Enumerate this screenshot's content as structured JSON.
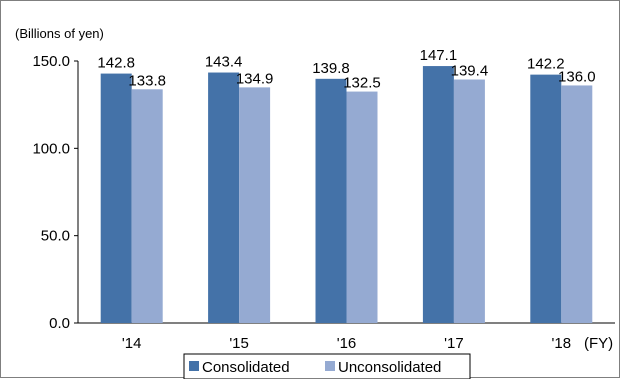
{
  "chart_data": {
    "type": "bar",
    "unit_label": "(Billions of yen)",
    "xaxis_suffix": "(FY)",
    "categories": [
      "'14",
      "'15",
      "'16",
      "'17",
      "'18"
    ],
    "series": [
      {
        "name": "Consolidated",
        "color": "#4472a8",
        "values": [
          142.8,
          143.4,
          139.8,
          147.1,
          142.2
        ]
      },
      {
        "name": "Unconsolidated",
        "color": "#95aad2",
        "values": [
          133.8,
          134.9,
          132.5,
          139.4,
          136.0
        ]
      }
    ],
    "ylim": [
      0,
      150
    ],
    "yticks": [
      "0.0",
      "50.0",
      "100.0",
      "150.0"
    ],
    "grid": false,
    "legend_position": "bottom"
  }
}
